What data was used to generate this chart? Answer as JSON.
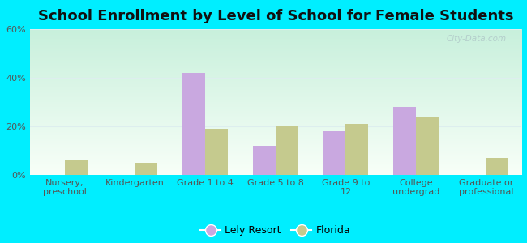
{
  "title": "School Enrollment by Level of School for Female Students",
  "categories": [
    "Nursery,\npreschool",
    "Kindergarten",
    "Grade 1 to 4",
    "Grade 5 to 8",
    "Grade 9 to\n12",
    "College\nundergrad",
    "Graduate or\nprofessional"
  ],
  "lely_resort": [
    0,
    0,
    42,
    12,
    18,
    28,
    0
  ],
  "florida": [
    6,
    5,
    19,
    20,
    21,
    24,
    7
  ],
  "lely_color": "#c9a8e0",
  "florida_color": "#c5ca8e",
  "background_outer": "#00eeff",
  "gradient_top": "#c8f0dc",
  "gradient_bottom": "#f8fff8",
  "ylim": [
    0,
    60
  ],
  "yticks": [
    0,
    20,
    40,
    60
  ],
  "ytick_labels": [
    "0%",
    "20%",
    "40%",
    "60%"
  ],
  "legend_lely": "Lely Resort",
  "legend_florida": "Florida",
  "bar_width": 0.32,
  "title_fontsize": 13,
  "tick_fontsize": 8,
  "legend_fontsize": 9,
  "axis_text_color": "#555555",
  "watermark_text": "City-Data.com",
  "watermark_color": "#b0c8c8",
  "grid_color": "#ddeeee"
}
